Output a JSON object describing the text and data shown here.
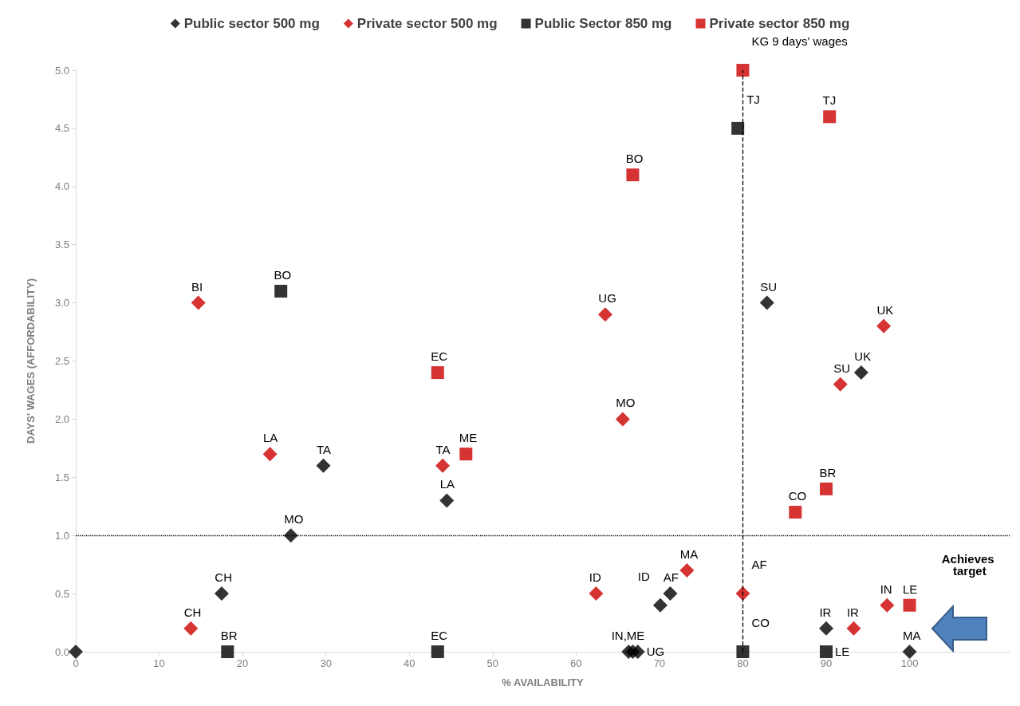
{
  "chart_data": {
    "type": "scatter",
    "xlabel": "% AVAILABILITY",
    "ylabel": "DAYS' WAGES (AFFORDABILITY)",
    "xlim": [
      0,
      112
    ],
    "xticks": [
      0,
      10,
      20,
      30,
      40,
      50,
      60,
      70,
      80,
      90,
      100
    ],
    "ylim": [
      0,
      5
    ],
    "yticks": [
      {
        "value": 0,
        "label": "0.0"
      },
      {
        "value": 0.5,
        "label": "0.5"
      },
      {
        "value": 1,
        "label": "1.0"
      },
      {
        "value": 1.5,
        "label": "1.5"
      },
      {
        "value": 2,
        "label": "2.0"
      },
      {
        "value": 2.5,
        "label": "2.5"
      },
      {
        "value": 3,
        "label": "3.0"
      },
      {
        "value": 3.5,
        "label": "3.5"
      },
      {
        "value": 4,
        "label": "4.0"
      },
      {
        "value": 4.5,
        "label": "4.5"
      },
      {
        "value": 5,
        "label": "5.0"
      }
    ],
    "grid": false,
    "legend": "top",
    "series": [
      {
        "name": "Public sector 500 mg",
        "color": "#000000",
        "marker": "diamond",
        "x": [
          0,
          17.5,
          25.8,
          29.7,
          44.5,
          66.3,
          66.8,
          67.4,
          70.1,
          71.3,
          82.9,
          94.2,
          90,
          100
        ],
        "values": [
          0,
          0.5,
          1.0,
          1.6,
          1.3,
          0,
          0,
          0,
          0.4,
          0.5,
          3.0,
          2.4,
          0.2,
          0
        ]
      },
      {
        "name": "Private sector 500 mg",
        "color": "#cc0000",
        "marker": "diamond",
        "x": [
          13.8,
          14.7,
          23.3,
          44,
          63.5,
          65.6,
          62.4,
          73.3,
          80,
          91.7,
          96.9,
          93.3,
          97.3
        ],
        "values": [
          0.2,
          3.0,
          1.7,
          1.6,
          2.9,
          2.0,
          0.5,
          0.7,
          0.5,
          2.3,
          2.8,
          0.2,
          0.4
        ]
      },
      {
        "name": "Public Sector 850 mg",
        "color": "#000000",
        "marker": "square",
        "x": [
          24.6,
          18.2,
          43.4,
          79.4,
          80,
          90
        ],
        "values": [
          3.1,
          0,
          0,
          4.5,
          0,
          0
        ]
      },
      {
        "name": "Private sector 850 mg",
        "color": "#cc0000",
        "marker": "square",
        "x": [
          80,
          90.4,
          66.8,
          43.4,
          46.8,
          90,
          86.3,
          100
        ],
        "values": [
          5.0,
          4.6,
          4.1,
          2.4,
          1.7,
          1.4,
          1.2,
          0.4
        ]
      }
    ],
    "ref_lines": [
      {
        "axis": "x",
        "value": 80,
        "line_style": "dashed",
        "color": "#000000"
      },
      {
        "axis": "y",
        "value": 1,
        "line_style": "dotted",
        "color": "#000000"
      }
    ],
    "annotations": [
      {
        "text": "CH",
        "x": 17.5,
        "y": 0.5
      },
      {
        "text": "MO",
        "x": 25.8,
        "y": 1.0
      },
      {
        "text": "TA",
        "x": 29.7,
        "y": 1.6
      },
      {
        "text": "LA",
        "x": 44.5,
        "y": 1.3
      },
      {
        "text": "IN,ME",
        "x": 66.3,
        "y": 0
      },
      {
        "text": "UG",
        "x": 67.4,
        "y": 0
      },
      {
        "text": "ID",
        "x": 70.1,
        "y": 0.4
      },
      {
        "text": "AF",
        "x": 71.3,
        "y": 0.5
      },
      {
        "text": "SU",
        "x": 82.9,
        "y": 3.0
      },
      {
        "text": "UK",
        "x": 94.2,
        "y": 2.4
      },
      {
        "text": "IR",
        "x": 90,
        "y": 0.2
      },
      {
        "text": "MA",
        "x": 100,
        "y": 0
      },
      {
        "text": "CH",
        "x": 13.8,
        "y": 0.2
      },
      {
        "text": "BI",
        "x": 14.7,
        "y": 3.0
      },
      {
        "text": "LA",
        "x": 23.3,
        "y": 1.7
      },
      {
        "text": "TA",
        "x": 44,
        "y": 1.6
      },
      {
        "text": "UG",
        "x": 63.5,
        "y": 2.9
      },
      {
        "text": "MO",
        "x": 65.6,
        "y": 2.0
      },
      {
        "text": "ID",
        "x": 62.4,
        "y": 0.5
      },
      {
        "text": "MA",
        "x": 73.3,
        "y": 0.7
      },
      {
        "text": "AF",
        "x": 80,
        "y": 0.5
      },
      {
        "text": "SU",
        "x": 91.7,
        "y": 2.3
      },
      {
        "text": "UK",
        "x": 96.9,
        "y": 2.8
      },
      {
        "text": "IR",
        "x": 93.3,
        "y": 0.2
      },
      {
        "text": "IN",
        "x": 97.3,
        "y": 0.4
      },
      {
        "text": "BO",
        "x": 24.6,
        "y": 3.1
      },
      {
        "text": "BR",
        "x": 18.2,
        "y": 0
      },
      {
        "text": "EC",
        "x": 43.4,
        "y": 0
      },
      {
        "text": "TJ",
        "x": 79.4,
        "y": 4.5
      },
      {
        "text": "CO",
        "x": 80,
        "y": 0
      },
      {
        "text": "LE",
        "x": 90,
        "y": 0
      },
      {
        "text": "KG 9 days' wages",
        "x": 80,
        "y": 5.0
      },
      {
        "text": "TJ",
        "x": 90.4,
        "y": 4.6
      },
      {
        "text": "BO",
        "x": 66.8,
        "y": 4.1
      },
      {
        "text": "EC",
        "x": 43.4,
        "y": 2.4
      },
      {
        "text": "ME",
        "x": 46.8,
        "y": 1.7
      },
      {
        "text": "BR",
        "x": 90,
        "y": 1.4
      },
      {
        "text": "CO",
        "x": 86.3,
        "y": 1.2
      },
      {
        "text": "LE",
        "x": 100,
        "y": 0.4
      },
      "Achieves target"
    ]
  }
}
